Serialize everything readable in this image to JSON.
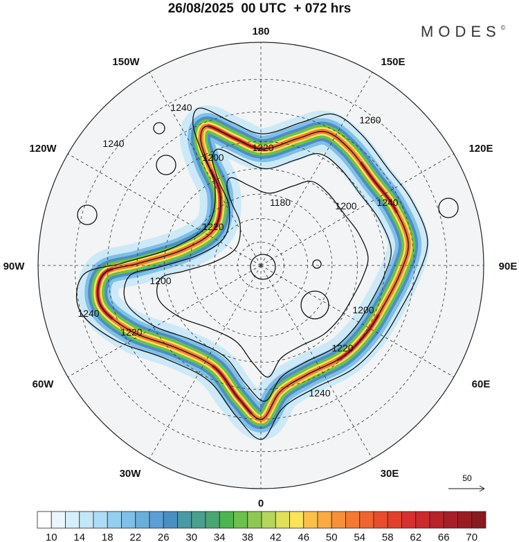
{
  "title": "26/08/2025  00 UTC  + 072 hrs",
  "logo": {
    "text": "MODES",
    "mark": "©"
  },
  "map": {
    "projection": "north polar stereographic",
    "longitude_labels": [
      {
        "label": "180",
        "lon": 180
      },
      {
        "label": "150E",
        "lon": 150
      },
      {
        "label": "120E",
        "lon": 120
      },
      {
        "label": "90E",
        "lon": 90
      },
      {
        "label": "60E",
        "lon": 60
      },
      {
        "label": "30E",
        "lon": 30
      },
      {
        "label": "0",
        "lon": 0
      },
      {
        "label": "30W",
        "lon": -30
      },
      {
        "label": "60W",
        "lon": -60
      },
      {
        "label": "90W",
        "lon": -90
      },
      {
        "label": "120W",
        "lon": -120
      },
      {
        "label": "150W",
        "lon": -150
      }
    ],
    "latitude_circles": [
      80,
      70,
      60,
      50,
      40,
      30,
      20
    ],
    "contour_labels": [
      "1240",
      "1220",
      "1260",
      "1240",
      "1200",
      "1200",
      "1240",
      "1180",
      "1220",
      "1200",
      "1240",
      "1220",
      "1200",
      "1220",
      "1240"
    ],
    "reference_vector": {
      "label": "50"
    }
  },
  "colorbar": {
    "ticks": [
      "10",
      "14",
      "18",
      "22",
      "26",
      "30",
      "34",
      "38",
      "42",
      "46",
      "50",
      "54",
      "58",
      "62",
      "66",
      "70"
    ],
    "colors": [
      "#ffffff",
      "#eaf6fd",
      "#d6effb",
      "#c3e6f8",
      "#aedcf7",
      "#95cfef",
      "#7fbfe8",
      "#6aaedc",
      "#5b9fd6",
      "#4a8fc4",
      "#4a9aa6",
      "#4a9f8e",
      "#4aa670",
      "#4db550",
      "#6cc04c",
      "#8ec850",
      "#b5d65a",
      "#e0e05a",
      "#fbe35a",
      "#fbc04a",
      "#fbaa44",
      "#f89038",
      "#f57a30",
      "#f0642e",
      "#e84e2c",
      "#e0402c",
      "#d83030",
      "#cc2a2c",
      "#b82228",
      "#a81e26",
      "#9a1c22",
      "#8a1a1e"
    ]
  }
}
